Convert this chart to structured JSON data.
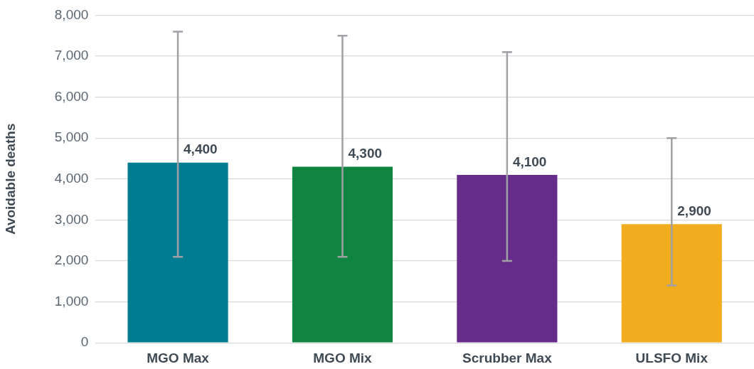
{
  "chart_data": {
    "type": "bar",
    "ylabel": "Avoidable deaths",
    "categories": [
      "MGO Max",
      "MGO Mix",
      "Scrubber Max",
      "ULSFO Mix"
    ],
    "values": [
      4400,
      4300,
      4100,
      2900
    ],
    "colors": [
      "#007c91",
      "#0f8541",
      "#652d89",
      "#f1ad1e"
    ],
    "errors": [
      [
        2100,
        7600
      ],
      [
        2100,
        7500
      ],
      [
        2000,
        7100
      ],
      [
        1400,
        5000
      ]
    ],
    "value_labels": [
      "4,400",
      "4,300",
      "4,100",
      "2,900"
    ],
    "ylim": [
      0,
      8000
    ],
    "yticks": [
      {
        "value": 0,
        "label": "0"
      },
      {
        "value": 1000,
        "label": "1,000"
      },
      {
        "value": 2000,
        "label": "2,000"
      },
      {
        "value": 3000,
        "label": "3,000"
      },
      {
        "value": 4000,
        "label": "4,000"
      },
      {
        "value": 5000,
        "label": "5,000"
      },
      {
        "value": 6000,
        "label": "6,000"
      },
      {
        "value": 7000,
        "label": "7,000"
      },
      {
        "value": 8000,
        "label": "8,000"
      }
    ],
    "grid": "y",
    "legend": false
  }
}
